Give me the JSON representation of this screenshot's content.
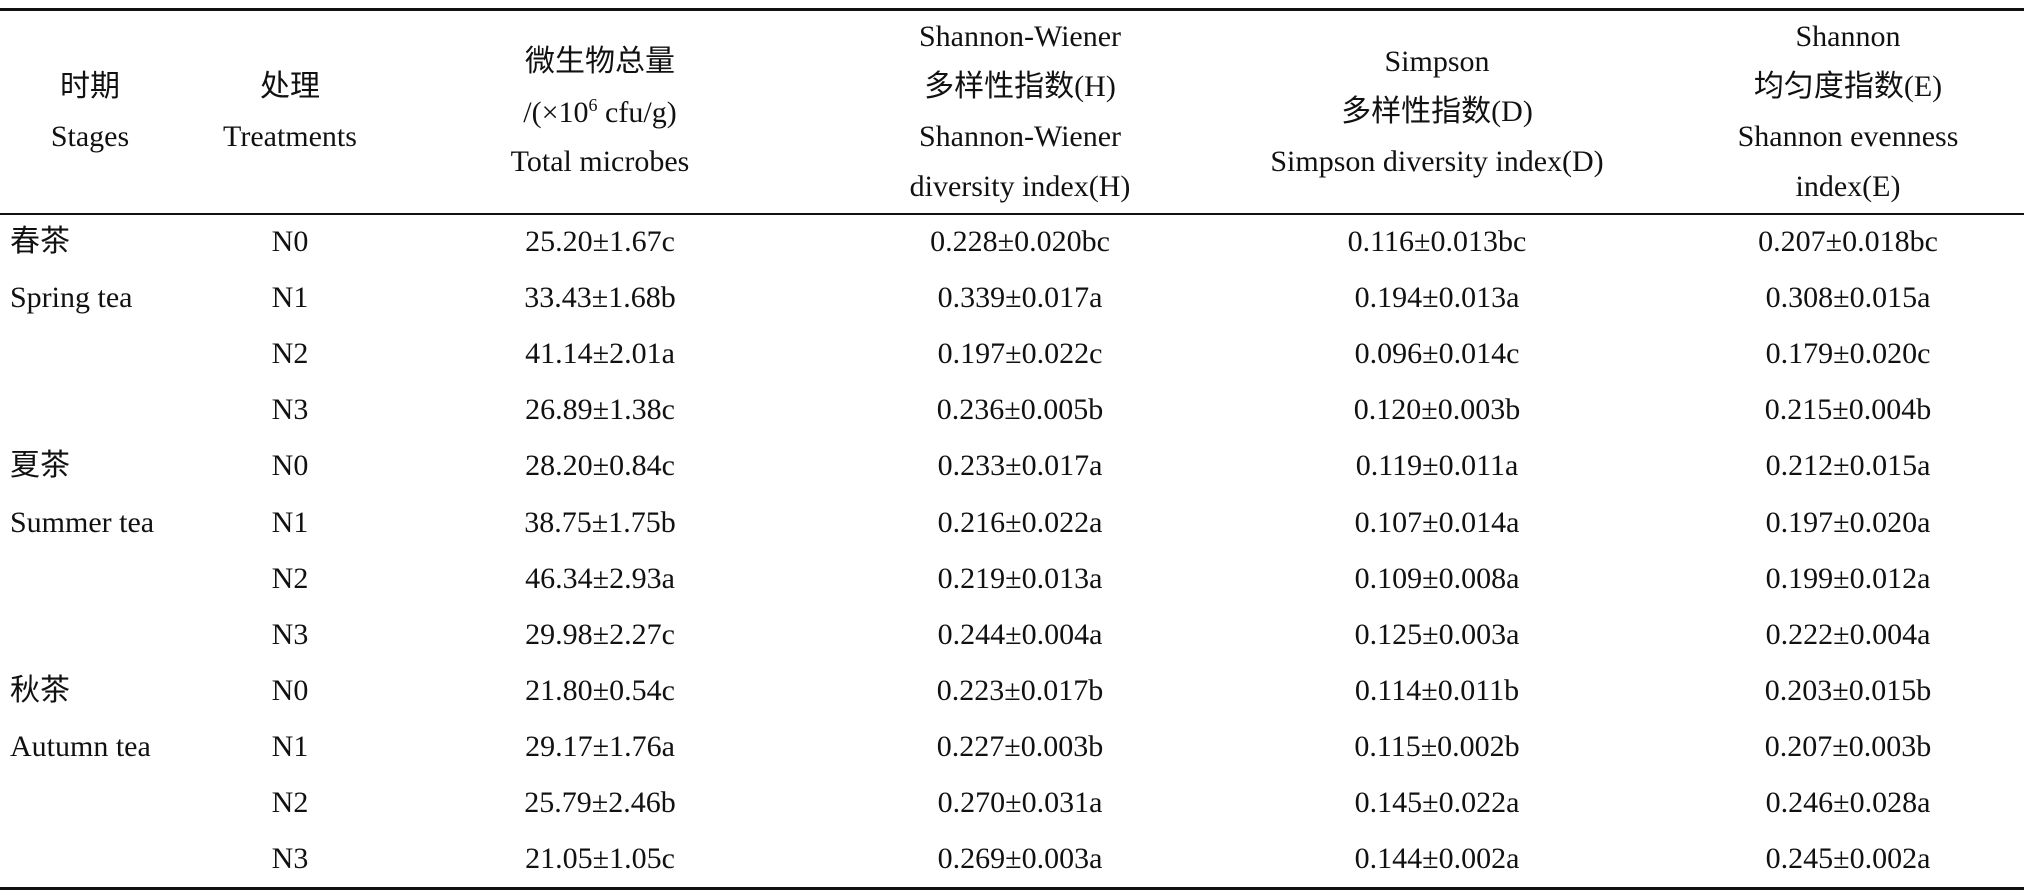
{
  "table": {
    "headers": [
      [
        "时期",
        "Stages"
      ],
      [
        "处理",
        "Treatments"
      ],
      [
        "微生物总量",
        [
          "/(×10",
          "6",
          " cfu/g)"
        ],
        "Total microbes"
      ],
      [
        "Shannon-Wiener",
        "多样性指数(H)",
        "Shannon-Wiener",
        "diversity index(H)"
      ],
      [
        "Simpson",
        "多样性指数(D)",
        "Simpson diversity index(D)"
      ],
      [
        "Shannon",
        "均匀度指数(E)",
        "Shannon evenness",
        "index(E)"
      ]
    ],
    "groups": [
      {
        "zh": "春茶",
        "en": "Spring tea",
        "rows": [
          [
            "N0",
            "25.20±1.67c",
            "0.228±0.020bc",
            "0.116±0.013bc",
            "0.207±0.018bc"
          ],
          [
            "N1",
            "33.43±1.68b",
            "0.339±0.017a",
            "0.194±0.013a",
            "0.308±0.015a"
          ],
          [
            "N2",
            "41.14±2.01a",
            "0.197±0.022c",
            "0.096±0.014c",
            "0.179±0.020c"
          ],
          [
            "N3",
            "26.89±1.38c",
            "0.236±0.005b",
            "0.120±0.003b",
            "0.215±0.004b"
          ]
        ]
      },
      {
        "zh": "夏茶",
        "en": "Summer tea",
        "rows": [
          [
            "N0",
            "28.20±0.84c",
            "0.233±0.017a",
            "0.119±0.011a",
            "0.212±0.015a"
          ],
          [
            "N1",
            "38.75±1.75b",
            "0.216±0.022a",
            "0.107±0.014a",
            "0.197±0.020a"
          ],
          [
            "N2",
            "46.34±2.93a",
            "0.219±0.013a",
            "0.109±0.008a",
            "0.199±0.012a"
          ],
          [
            "N3",
            "29.98±2.27c",
            "0.244±0.004a",
            "0.125±0.003a",
            "0.222±0.004a"
          ]
        ]
      },
      {
        "zh": "秋茶",
        "en": "Autumn tea",
        "rows": [
          [
            "N0",
            "21.80±0.54c",
            "0.223±0.017b",
            "0.114±0.011b",
            "0.203±0.015b"
          ],
          [
            "N1",
            "29.17±1.76a",
            "0.227±0.003b",
            "0.115±0.002b",
            "0.207±0.003b"
          ],
          [
            "N2",
            "25.79±2.46b",
            "0.270±0.031a",
            "0.145±0.022a",
            "0.246±0.028a"
          ],
          [
            "N3",
            "21.05±1.05c",
            "0.269±0.003a",
            "0.144±0.002a",
            "0.245±0.002a"
          ]
        ]
      }
    ]
  }
}
